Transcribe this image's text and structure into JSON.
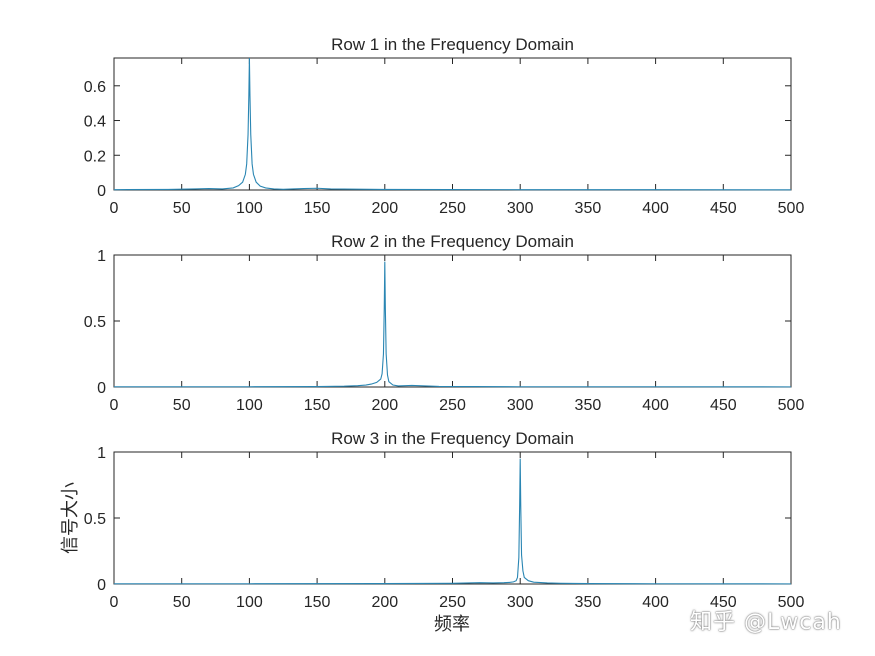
{
  "figure": {
    "xlabel": "频率",
    "ylabel": "信号大小",
    "watermark": "知乎 @Lwcah",
    "line_color": "#2a86b3"
  },
  "chart_data": [
    {
      "type": "line",
      "title": "Row 1 in the Frequency Domain",
      "xlim": [
        0,
        500
      ],
      "ylim": [
        0,
        0.76
      ],
      "x_ticks": [
        0,
        50,
        100,
        150,
        200,
        250,
        300,
        350,
        400,
        450,
        500
      ],
      "x_tick_labels": [
        "0",
        "50",
        "100",
        "150",
        "200",
        "250",
        "300",
        "350",
        "400",
        "450",
        "500"
      ],
      "y_ticks": [
        0,
        0.2,
        0.4,
        0.6
      ],
      "y_tick_labels": [
        "0",
        "0.2",
        "0.4",
        "0.6"
      ],
      "x": [
        0,
        40,
        60,
        70,
        80,
        88,
        92,
        95,
        97,
        98,
        99,
        99.6,
        100,
        100.4,
        101,
        102,
        103,
        105,
        108,
        112,
        118,
        125,
        140,
        150,
        160,
        200,
        300,
        400,
        500
      ],
      "y": [
        0.002,
        0.003,
        0.006,
        0.008,
        0.006,
        0.012,
        0.025,
        0.045,
        0.09,
        0.15,
        0.32,
        0.55,
        0.76,
        0.55,
        0.32,
        0.15,
        0.09,
        0.045,
        0.022,
        0.012,
        0.006,
        0.004,
        0.008,
        0.01,
        0.006,
        0.003,
        0.002,
        0.002,
        0.001
      ]
    },
    {
      "type": "line",
      "title": "Row 2 in the Frequency Domain",
      "xlim": [
        0,
        500
      ],
      "ylim": [
        0,
        1
      ],
      "x_ticks": [
        0,
        50,
        100,
        150,
        200,
        250,
        300,
        350,
        400,
        450,
        500
      ],
      "x_tick_labels": [
        "0",
        "50",
        "100",
        "150",
        "200",
        "250",
        "300",
        "350",
        "400",
        "450",
        "500"
      ],
      "y_ticks": [
        0,
        0.5,
        1
      ],
      "y_tick_labels": [
        "0",
        "0.5",
        "1"
      ],
      "x": [
        0,
        100,
        150,
        170,
        180,
        186,
        190,
        194,
        197,
        198,
        199,
        199.6,
        200,
        200.4,
        201,
        202,
        203,
        206,
        210,
        220,
        230,
        240,
        300,
        400,
        500
      ],
      "y": [
        0.002,
        0.002,
        0.003,
        0.006,
        0.01,
        0.015,
        0.022,
        0.035,
        0.06,
        0.1,
        0.25,
        0.6,
        0.95,
        0.6,
        0.25,
        0.09,
        0.04,
        0.015,
        0.008,
        0.012,
        0.008,
        0.004,
        0.002,
        0.002,
        0.001
      ]
    },
    {
      "type": "line",
      "title": "Row 3 in the Frequency Domain",
      "xlim": [
        0,
        500
      ],
      "ylim": [
        0,
        1
      ],
      "x_ticks": [
        0,
        50,
        100,
        150,
        200,
        250,
        300,
        350,
        400,
        450,
        500
      ],
      "x_tick_labels": [
        "0",
        "50",
        "100",
        "150",
        "200",
        "250",
        "300",
        "350",
        "400",
        "450",
        "500"
      ],
      "y_ticks": [
        0,
        0.5,
        1
      ],
      "y_tick_labels": [
        "0",
        "0.5",
        "1"
      ],
      "x": [
        0,
        100,
        200,
        250,
        270,
        280,
        288,
        292,
        295,
        297,
        298,
        299,
        299.6,
        300,
        300.4,
        301,
        302,
        303,
        306,
        310,
        320,
        330,
        350,
        400,
        500
      ],
      "y": [
        0.002,
        0.002,
        0.003,
        0.005,
        0.01,
        0.008,
        0.01,
        0.012,
        0.016,
        0.025,
        0.05,
        0.2,
        0.6,
        0.95,
        0.6,
        0.22,
        0.1,
        0.05,
        0.025,
        0.014,
        0.008,
        0.005,
        0.003,
        0.002,
        0.001
      ]
    }
  ]
}
